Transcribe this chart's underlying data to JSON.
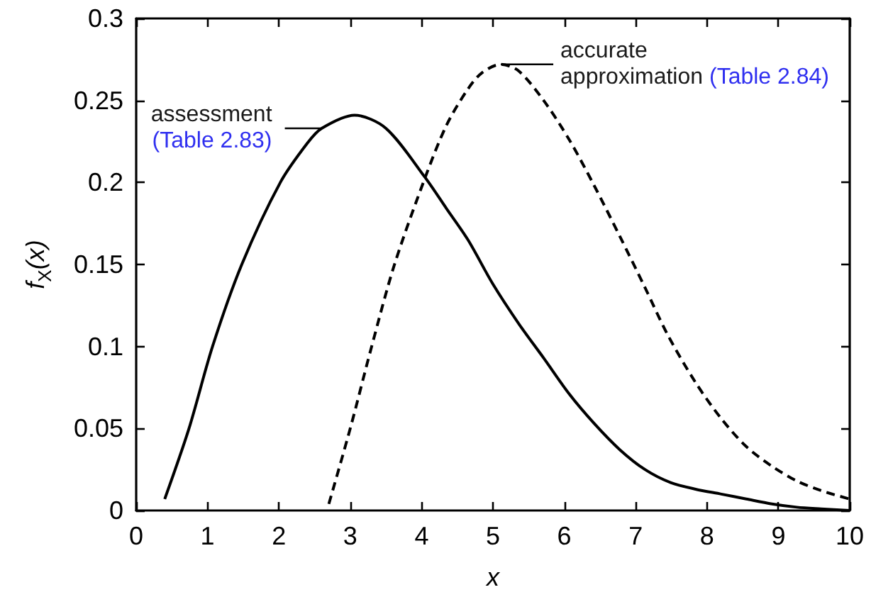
{
  "chart_data": {
    "type": "line",
    "xlabel": "x",
    "ylabel": "f$_{X}$(x)",
    "xlim": [
      0,
      10
    ],
    "ylim": [
      0,
      0.3
    ],
    "xticks": [
      0,
      1,
      2,
      3,
      4,
      5,
      6,
      7,
      8,
      9,
      10
    ],
    "yticks": [
      0,
      0.05,
      0.1,
      0.15,
      0.2,
      0.25,
      0.3
    ],
    "grid": false,
    "marker": "none",
    "series": [
      {
        "color": "#000000",
        "line_style": "solid",
        "x": [
          0.4,
          0.74,
          1.07,
          1.48,
          2.02,
          2.4,
          2.6,
          3.06,
          3.5,
          4.05,
          4.35,
          4.65,
          5.0,
          5.36,
          5.71,
          6.07,
          6.42,
          6.78,
          7.13,
          7.49,
          7.84,
          8.2,
          8.55,
          8.91,
          9.26,
          9.6,
          10
        ],
        "values": [
          0.007,
          0.05,
          0.1,
          0.15,
          0.2,
          0.224,
          0.233,
          0.241,
          0.233,
          0.203,
          0.184,
          0.165,
          0.138,
          0.114,
          0.093,
          0.071,
          0.053,
          0.037,
          0.025,
          0.017,
          0.013,
          0.01,
          0.007,
          0.004,
          0.002,
          0.001,
          0
        ]
      },
      {
        "color": "#000000",
        "line_style": "dashed",
        "x": [
          2.7,
          3.0,
          3.3,
          3.62,
          4.05,
          4.35,
          4.65,
          4.85,
          5.11,
          5.36,
          5.71,
          6.07,
          6.42,
          6.78,
          7.13,
          7.45,
          7.84,
          8.2,
          8.55,
          8.91,
          9.26,
          9.61,
          10
        ],
        "values": [
          0.004,
          0.05,
          0.1,
          0.15,
          0.203,
          0.235,
          0.257,
          0.267,
          0.272,
          0.268,
          0.25,
          0.226,
          0.198,
          0.167,
          0.136,
          0.107,
          0.078,
          0.056,
          0.039,
          0.027,
          0.018,
          0.012,
          0.007
        ]
      }
    ],
    "annotations": [
      {
        "text": "assessment\n(Table 2.83)",
        "x": 2.6,
        "y": 0.233
      },
      {
        "text": "accurate\napproximation (Table 2.84)",
        "x": 5.11,
        "y": 0.272
      }
    ]
  }
}
